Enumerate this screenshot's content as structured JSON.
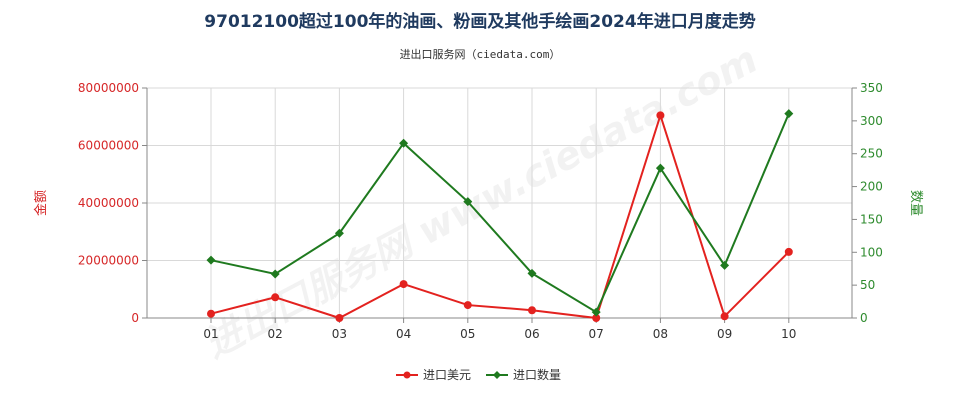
{
  "chart_data": {
    "type": "line",
    "title": "97012100超过100年的油画、粉画及其他手绘画2024年进口月度走势",
    "subtitle": "进出口服务网（ciedata.com）",
    "watermark": "进出口服务网 www.ciedata.com",
    "categories": [
      "01",
      "02",
      "03",
      "04",
      "05",
      "06",
      "07",
      "08",
      "09",
      "10"
    ],
    "left_axis": {
      "label": "金额",
      "min": 0,
      "max": 80000000,
      "ticks": [
        "0",
        "20000000",
        "40000000",
        "60000000",
        "80000000"
      ],
      "color": "#d62728"
    },
    "right_axis": {
      "label": "数量",
      "min": 0,
      "max": 350,
      "ticks": [
        "0",
        "50",
        "100",
        "150",
        "200",
        "250",
        "300",
        "350"
      ],
      "color": "#2e8b2e"
    },
    "series": [
      {
        "name": "进口美元",
        "axis": "left",
        "color": "#e3221f",
        "marker": "circle",
        "values": [
          1500000,
          7200000,
          0,
          11800000,
          4500000,
          2700000,
          0,
          70500000,
          600000,
          23000000
        ]
      },
      {
        "name": "进口数量",
        "axis": "right",
        "color": "#1f7a1f",
        "marker": "diamond",
        "values": [
          88,
          67,
          129,
          266,
          177,
          68,
          9,
          228,
          80,
          311
        ]
      }
    ],
    "grid": true,
    "legend_position": "bottom-center"
  }
}
